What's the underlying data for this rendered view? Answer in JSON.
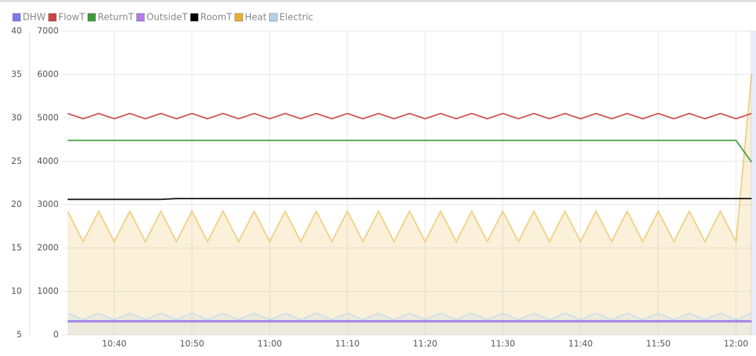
{
  "chart_data": {
    "type": "line",
    "x": [
      "10:34",
      "10:36",
      "10:38",
      "10:40",
      "10:42",
      "10:44",
      "10:46",
      "10:48",
      "10:50",
      "10:52",
      "10:54",
      "10:56",
      "10:58",
      "11:00",
      "11:02",
      "11:04",
      "11:06",
      "11:08",
      "11:10",
      "11:12",
      "11:14",
      "11:16",
      "11:18",
      "11:20",
      "11:22",
      "11:24",
      "11:26",
      "11:28",
      "11:30",
      "11:32",
      "11:34",
      "11:36",
      "11:38",
      "11:40",
      "11:42",
      "11:44",
      "11:46",
      "11:48",
      "11:50",
      "11:52",
      "11:54",
      "11:56",
      "11:58",
      "12:00",
      "12:02"
    ],
    "ylim": [
      5,
      40
    ],
    "yticks": [
      5,
      10,
      15,
      20,
      25,
      30,
      35,
      40
    ],
    "y2lim": [
      0,
      7000
    ],
    "y2ticks": [
      0,
      1000,
      2000,
      3000,
      4000,
      5000,
      6000,
      7000
    ],
    "grid": true,
    "series": [
      {
        "name": "DHW",
        "color": "#7b7bea",
        "values": [
          6.6,
          6.6,
          6.6,
          6.6,
          6.6,
          6.6,
          6.6,
          6.6,
          6.6,
          6.6,
          6.6,
          6.6,
          6.6,
          6.6,
          6.6,
          6.6,
          6.6,
          6.6,
          6.6,
          6.6,
          6.6,
          6.6,
          6.6,
          6.6,
          6.6,
          6.6,
          6.6,
          6.6,
          6.6,
          6.6,
          6.6,
          6.6,
          6.6,
          6.6,
          6.6,
          6.6,
          6.6,
          6.6,
          6.6,
          6.6,
          6.6,
          6.6,
          6.6,
          6.6,
          6.6
        ]
      },
      {
        "name": "FlowT",
        "color": "#cc4444",
        "values": [
          30.5,
          29.9,
          30.5,
          29.9,
          30.5,
          29.9,
          30.5,
          29.9,
          30.5,
          29.9,
          30.5,
          29.9,
          30.5,
          29.9,
          30.5,
          29.9,
          30.5,
          29.9,
          30.5,
          29.9,
          30.5,
          29.9,
          30.5,
          29.9,
          30.5,
          29.9,
          30.5,
          29.9,
          30.5,
          29.9,
          30.5,
          29.9,
          30.5,
          29.9,
          30.5,
          29.9,
          30.5,
          29.9,
          30.5,
          29.9,
          30.5,
          29.9,
          30.5,
          29.9,
          30.5
        ]
      },
      {
        "name": "ReturnT",
        "color": "#3a9a3a",
        "values": [
          27.4,
          27.4,
          27.4,
          27.4,
          27.4,
          27.4,
          27.4,
          27.4,
          27.4,
          27.4,
          27.4,
          27.4,
          27.4,
          27.4,
          27.4,
          27.4,
          27.4,
          27.4,
          27.4,
          27.4,
          27.4,
          27.4,
          27.4,
          27.4,
          27.4,
          27.4,
          27.4,
          27.4,
          27.4,
          27.4,
          27.4,
          27.4,
          27.4,
          27.4,
          27.4,
          27.4,
          27.4,
          27.4,
          27.4,
          27.4,
          27.4,
          27.4,
          27.4,
          27.4,
          24.9
        ]
      },
      {
        "name": "OutsideT",
        "color": "#b57be8",
        "values": [
          6.5,
          6.5,
          6.5,
          6.5,
          6.5,
          6.5,
          6.5,
          6.5,
          6.5,
          6.5,
          6.5,
          6.5,
          6.5,
          6.5,
          6.5,
          6.5,
          6.5,
          6.5,
          6.5,
          6.5,
          6.5,
          6.5,
          6.5,
          6.5,
          6.5,
          6.5,
          6.5,
          6.5,
          6.5,
          6.5,
          6.5,
          6.5,
          6.5,
          6.5,
          6.5,
          6.5,
          6.5,
          6.5,
          6.5,
          6.5,
          6.5,
          6.5,
          6.5,
          6.5,
          6.5
        ]
      },
      {
        "name": "RoomT",
        "color": "#000000",
        "values": [
          20.6,
          20.6,
          20.6,
          20.6,
          20.6,
          20.6,
          20.6,
          20.7,
          20.7,
          20.7,
          20.7,
          20.7,
          20.7,
          20.7,
          20.7,
          20.7,
          20.7,
          20.7,
          20.7,
          20.7,
          20.7,
          20.7,
          20.7,
          20.7,
          20.7,
          20.7,
          20.7,
          20.7,
          20.7,
          20.7,
          20.7,
          20.7,
          20.7,
          20.7,
          20.7,
          20.7,
          20.7,
          20.7,
          20.7,
          20.7,
          20.7,
          20.7,
          20.7,
          20.7,
          20.7
        ]
      },
      {
        "name": "Heat",
        "color": "#e8b030",
        "axis": "y2",
        "fill": true,
        "values": [
          2850,
          2150,
          2850,
          2150,
          2850,
          2150,
          2850,
          2150,
          2850,
          2150,
          2850,
          2150,
          2850,
          2150,
          2850,
          2150,
          2850,
          2150,
          2850,
          2150,
          2850,
          2150,
          2850,
          2150,
          2850,
          2150,
          2850,
          2150,
          2850,
          2150,
          2850,
          2150,
          2850,
          2150,
          2850,
          2150,
          2850,
          2150,
          2850,
          2150,
          2850,
          2150,
          2850,
          2150,
          6000
        ]
      },
      {
        "name": "Electric",
        "color": "#b0d4ee",
        "axis": "y2",
        "fill": true,
        "values": [
          500,
          350,
          500,
          350,
          500,
          350,
          500,
          350,
          500,
          350,
          500,
          350,
          500,
          350,
          500,
          350,
          500,
          350,
          500,
          350,
          500,
          350,
          500,
          350,
          500,
          350,
          500,
          350,
          500,
          350,
          500,
          350,
          500,
          350,
          500,
          350,
          500,
          350,
          500,
          350,
          500,
          350,
          500,
          350,
          500
        ]
      }
    ]
  }
}
